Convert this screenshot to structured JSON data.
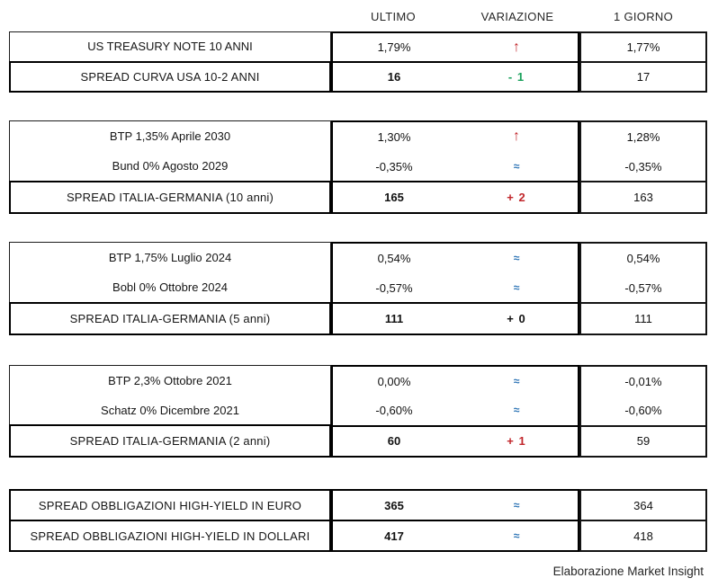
{
  "header": {
    "columns": [
      "ULTIMO",
      "VARIAZIONE",
      "1 GIORNO"
    ]
  },
  "footer": {
    "credit": "Elaborazione Market Insight"
  },
  "colors": {
    "up_red": "#c1262b",
    "down_green": "#19a05b",
    "flat_blue": "#2e75b6",
    "text": "#1a1a1a",
    "border": "#000000",
    "background": "#ffffff"
  },
  "chart_data": {
    "type": "table",
    "columns": [
      "",
      "ULTIMO",
      "VARIAZIONE",
      "1 GIORNO"
    ],
    "sections": [
      {
        "name": "us-treasury",
        "rows": [
          {
            "label": "US TREASURY NOTE 10 ANNI",
            "ultimo": "1,79%",
            "variazione": "↑",
            "var_style": "up",
            "giorno": "1,77%",
            "spread": false
          },
          {
            "label": "SPREAD CURVA USA 10-2 ANNI",
            "ultimo": "16",
            "variazione": "- 1",
            "var_style": "neg",
            "giorno": "17",
            "spread": true
          }
        ]
      },
      {
        "name": "italy-germany-10y",
        "rows": [
          {
            "label": "BTP 1,35% Aprile 2030",
            "ultimo": "1,30%",
            "variazione": "↑",
            "var_style": "up",
            "giorno": "1,28%",
            "spread": false
          },
          {
            "label": "Bund 0% Agosto 2029",
            "ultimo": "-0,35%",
            "variazione": "≈",
            "var_style": "flat",
            "giorno": "-0,35%",
            "spread": false
          },
          {
            "label": "SPREAD ITALIA-GERMANIA (10 anni)",
            "ultimo": "165",
            "variazione": "+ 2",
            "var_style": "pos",
            "giorno": "163",
            "spread": true
          }
        ]
      },
      {
        "name": "italy-germany-5y",
        "rows": [
          {
            "label": "BTP 1,75% Luglio 2024",
            "ultimo": "0,54%",
            "variazione": "≈",
            "var_style": "flat",
            "giorno": "0,54%",
            "spread": false
          },
          {
            "label": "Bobl 0% Ottobre 2024",
            "ultimo": "-0,57%",
            "variazione": "≈",
            "var_style": "flat",
            "giorno": "-0,57%",
            "spread": false
          },
          {
            "label": "SPREAD ITALIA-GERMANIA (5 anni)",
            "ultimo": "111",
            "variazione": "+ 0",
            "var_style": "zero",
            "giorno": "111",
            "spread": true
          }
        ]
      },
      {
        "name": "italy-germany-2y",
        "rows": [
          {
            "label": "BTP 2,3% Ottobre 2021",
            "ultimo": "0,00%",
            "variazione": "≈",
            "var_style": "flat",
            "giorno": "-0,01%",
            "spread": false
          },
          {
            "label": "Schatz 0% Dicembre 2021",
            "ultimo": "-0,60%",
            "variazione": "≈",
            "var_style": "flat",
            "giorno": "-0,60%",
            "spread": false
          },
          {
            "label": "SPREAD ITALIA-GERMANIA (2 anni)",
            "ultimo": "60",
            "variazione": "+ 1",
            "var_style": "pos",
            "giorno": "59",
            "spread": true
          }
        ]
      },
      {
        "name": "high-yield",
        "rows": [
          {
            "label": "SPREAD OBBLIGAZIONI HIGH-YIELD IN EURO",
            "ultimo": "365",
            "variazione": "≈",
            "var_style": "flat",
            "giorno": "364",
            "spread": true
          },
          {
            "label": "SPREAD OBBLIGAZIONI HIGH-YIELD IN DOLLARI",
            "ultimo": "417",
            "variazione": "≈",
            "var_style": "flat",
            "giorno": "418",
            "spread": true
          }
        ]
      }
    ]
  }
}
